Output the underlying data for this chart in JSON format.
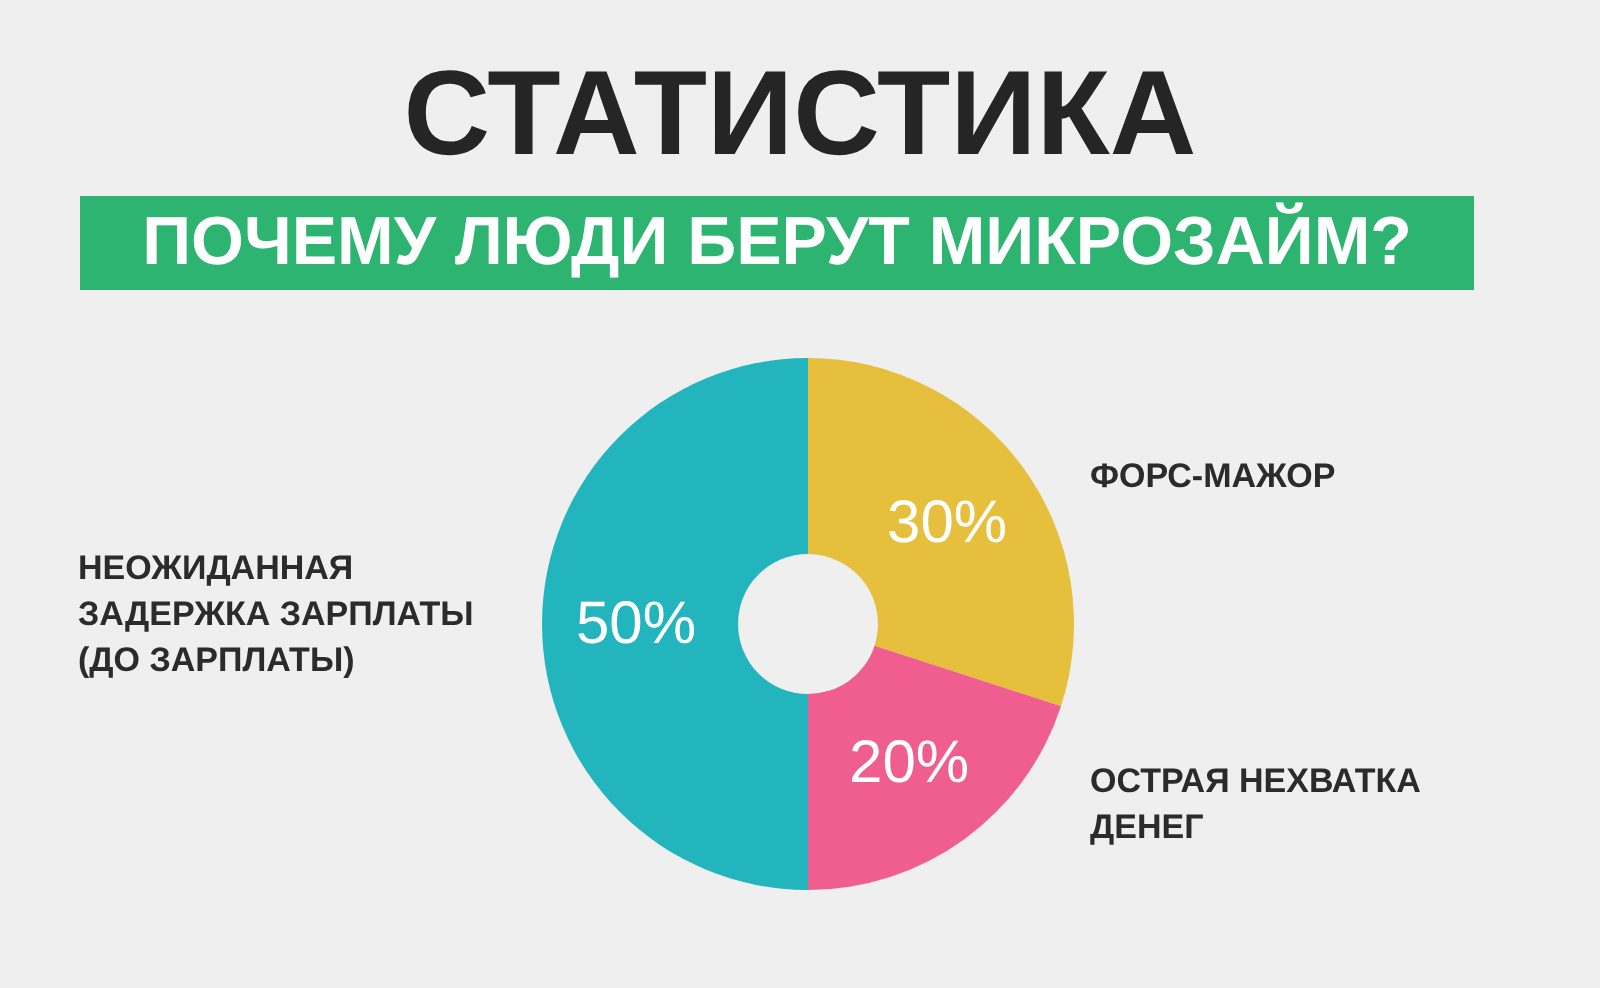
{
  "chart_data": {
    "type": "donut",
    "title": "СТАТИСТИКА",
    "subtitle": "ПОЧЕМУ ЛЮДИ БЕРУТ МИКРОЗАЙМ?",
    "categories": [
      "ФОРС-МАЖОР",
      "ОСТРАЯ НЕХВАТКА ДЕНЕГ",
      "НЕОЖИДАННАЯ ЗАДЕРЖКА ЗАРПЛАТЫ (ДО ЗАРПЛАТЫ)"
    ],
    "values": [
      30,
      20,
      50
    ],
    "colors": [
      "#e6bf3c",
      "#ef5e8e",
      "#22b5bd"
    ],
    "value_labels": [
      "30%",
      "20%",
      "50%"
    ]
  }
}
